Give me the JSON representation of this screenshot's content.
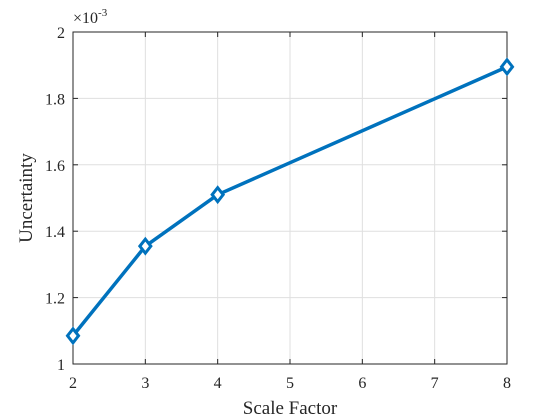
{
  "chart_data": {
    "type": "line",
    "x": [
      2,
      3,
      4,
      8
    ],
    "series": [
      {
        "values": [
          1.085,
          1.355,
          1.51,
          1.895
        ],
        "color": "#0072BD",
        "marker": "diamond"
      }
    ],
    "xlabel": "Scale Factor",
    "ylabel": "Uncertainty",
    "xlim": [
      2,
      8
    ],
    "ylim": [
      1,
      2
    ],
    "xticks": [
      2,
      3,
      4,
      5,
      6,
      7,
      8
    ],
    "yticks": [
      1,
      1.2,
      1.4,
      1.6,
      1.8,
      2
    ],
    "ytick_labels": [
      "1",
      "1.2",
      "1.4",
      "1.6",
      "1.8",
      "2"
    ],
    "y_exponent": {
      "base": "×10",
      "power": "-3"
    },
    "grid": true
  }
}
